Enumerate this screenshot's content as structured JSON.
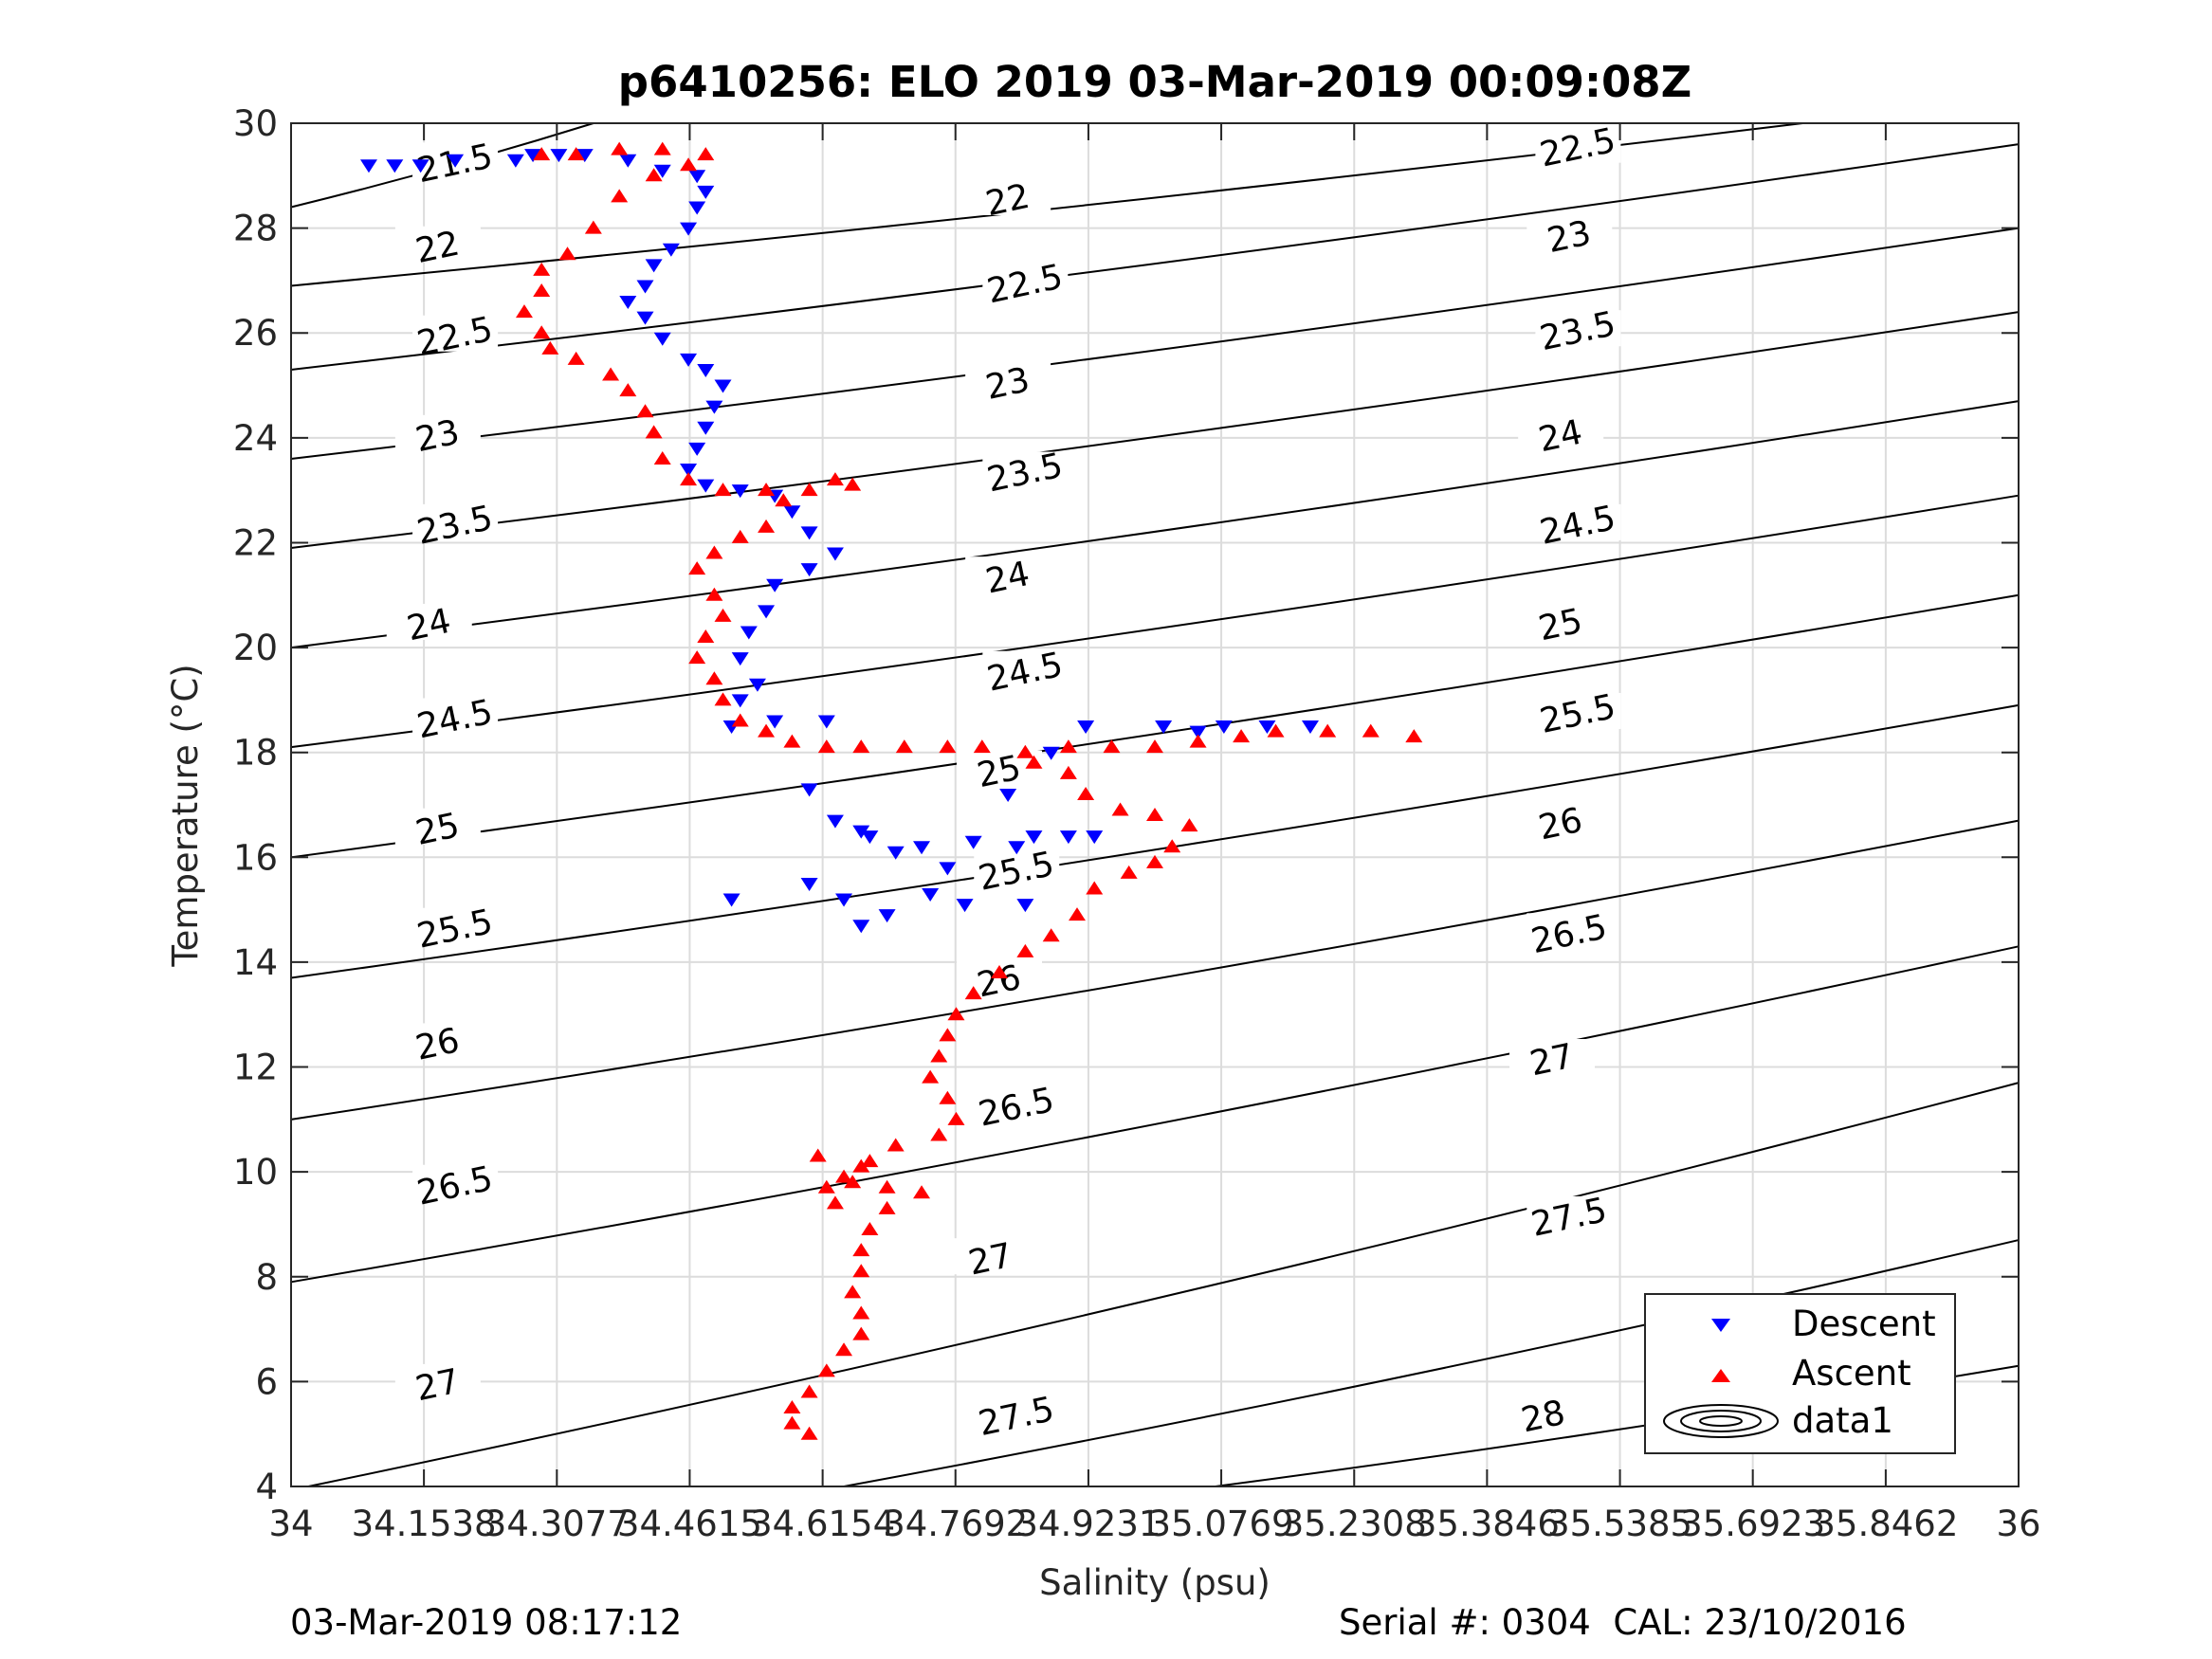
{
  "chart_data": {
    "type": "scatter",
    "title": "p6410256: ELO 2019 03-Mar-2019 00:09:08Z",
    "xlabel": "Salinity (psu)",
    "ylabel": "Temperature (°C)",
    "xlim": [
      34,
      36
    ],
    "ylim": [
      4,
      30
    ],
    "grid": true,
    "legend_position": "bottom-right",
    "xticks": [
      34,
      34.1538,
      34.3077,
      34.4615,
      34.6154,
      34.7692,
      34.9231,
      35.0769,
      35.2308,
      35.3846,
      35.5385,
      35.6923,
      35.8462,
      36
    ],
    "xtick_labels": [
      "34",
      "34.1538",
      "34.3077",
      "34.4615",
      "34.6154",
      "34.7692",
      "34.9231",
      "35.0769",
      "35.2308",
      "35.3846",
      "35.5385",
      "35.6923",
      "35.8462",
      "36"
    ],
    "yticks": [
      4,
      6,
      8,
      10,
      12,
      14,
      16,
      18,
      20,
      22,
      24,
      26,
      28,
      30
    ],
    "ytick_labels": [
      "4",
      "6",
      "8",
      "10",
      "12",
      "14",
      "16",
      "18",
      "20",
      "22",
      "24",
      "26",
      "28",
      "30"
    ],
    "density_contours": {
      "levels": [
        "21.5",
        "22",
        "22.5",
        "23",
        "23.5",
        "24",
        "24.5",
        "25",
        "25.5",
        "26",
        "26.5",
        "27",
        "27.5",
        "28"
      ],
      "label_positions": [
        {
          "label": "21.5",
          "x": 34.19,
          "y": 29.2
        },
        {
          "label": "22",
          "x": 34.17,
          "y": 27.6
        },
        {
          "label": "22.5",
          "x": 34.19,
          "y": 25.9
        },
        {
          "label": "23",
          "x": 34.17,
          "y": 24.0
        },
        {
          "label": "23.5",
          "x": 34.19,
          "y": 22.3
        },
        {
          "label": "24",
          "x": 34.16,
          "y": 20.4
        },
        {
          "label": "24.5",
          "x": 34.19,
          "y": 18.6
        },
        {
          "label": "25",
          "x": 34.17,
          "y": 16.5
        },
        {
          "label": "25.5",
          "x": 34.19,
          "y": 14.6
        },
        {
          "label": "26",
          "x": 34.17,
          "y": 12.4
        },
        {
          "label": "26.5",
          "x": 34.19,
          "y": 9.7
        },
        {
          "label": "27",
          "x": 34.17,
          "y": 5.9
        },
        {
          "label": "22",
          "x": 34.83,
          "y": 28.5
        },
        {
          "label": "22.5",
          "x": 34.85,
          "y": 26.9
        },
        {
          "label": "23",
          "x": 34.83,
          "y": 25.0
        },
        {
          "label": "23.5",
          "x": 34.85,
          "y": 23.3
        },
        {
          "label": "24",
          "x": 34.83,
          "y": 21.3
        },
        {
          "label": "24.5",
          "x": 34.85,
          "y": 19.5
        },
        {
          "label": "25",
          "x": 34.82,
          "y": 17.6
        },
        {
          "label": "25.5",
          "x": 34.84,
          "y": 15.7
        },
        {
          "label": "26",
          "x": 34.82,
          "y": 13.6
        },
        {
          "label": "26.5",
          "x": 34.84,
          "y": 11.2
        },
        {
          "label": "27",
          "x": 34.81,
          "y": 8.3
        },
        {
          "label": "27.5",
          "x": 34.84,
          "y": 5.3
        },
        {
          "label": "22.5",
          "x": 35.49,
          "y": 29.5
        },
        {
          "label": "23",
          "x": 35.48,
          "y": 27.8
        },
        {
          "label": "23.5",
          "x": 35.49,
          "y": 26.0
        },
        {
          "label": "24",
          "x": 35.47,
          "y": 24.0
        },
        {
          "label": "24.5",
          "x": 35.49,
          "y": 22.3
        },
        {
          "label": "25",
          "x": 35.47,
          "y": 20.4
        },
        {
          "label": "25.5",
          "x": 35.49,
          "y": 18.7
        },
        {
          "label": "26",
          "x": 35.47,
          "y": 16.6
        },
        {
          "label": "26.5",
          "x": 35.48,
          "y": 14.5
        },
        {
          "label": "27",
          "x": 35.46,
          "y": 12.1
        },
        {
          "label": "27.5",
          "x": 35.48,
          "y": 9.1
        },
        {
          "label": "28",
          "x": 35.45,
          "y": 5.3
        }
      ]
    },
    "series": [
      {
        "name": "Descent",
        "marker": "triangle-down",
        "color": "#0000ff",
        "points": [
          [
            34.09,
            29.2
          ],
          [
            34.12,
            29.2
          ],
          [
            34.15,
            29.2
          ],
          [
            34.19,
            29.3
          ],
          [
            34.26,
            29.3
          ],
          [
            34.28,
            29.4
          ],
          [
            34.31,
            29.4
          ],
          [
            34.34,
            29.4
          ],
          [
            34.39,
            29.3
          ],
          [
            34.43,
            29.1
          ],
          [
            34.47,
            29.0
          ],
          [
            34.48,
            28.7
          ],
          [
            34.47,
            28.4
          ],
          [
            34.46,
            28.0
          ],
          [
            34.44,
            27.6
          ],
          [
            34.42,
            27.3
          ],
          [
            34.41,
            26.9
          ],
          [
            34.39,
            26.6
          ],
          [
            34.41,
            26.3
          ],
          [
            34.43,
            25.9
          ],
          [
            34.46,
            25.5
          ],
          [
            34.48,
            25.3
          ],
          [
            34.5,
            25.0
          ],
          [
            34.49,
            24.6
          ],
          [
            34.48,
            24.2
          ],
          [
            34.47,
            23.8
          ],
          [
            34.46,
            23.4
          ],
          [
            34.48,
            23.1
          ],
          [
            34.52,
            23.0
          ],
          [
            34.56,
            22.9
          ],
          [
            34.58,
            22.6
          ],
          [
            34.6,
            22.2
          ],
          [
            34.63,
            21.8
          ],
          [
            34.6,
            21.5
          ],
          [
            34.56,
            21.2
          ],
          [
            34.55,
            20.7
          ],
          [
            34.53,
            20.3
          ],
          [
            34.52,
            19.8
          ],
          [
            34.54,
            19.3
          ],
          [
            34.52,
            19.0
          ],
          [
            34.51,
            18.5
          ],
          [
            34.56,
            18.6
          ],
          [
            34.62,
            18.6
          ],
          [
            34.6,
            17.3
          ],
          [
            34.63,
            16.7
          ],
          [
            34.66,
            16.5
          ],
          [
            34.67,
            16.4
          ],
          [
            34.7,
            16.1
          ],
          [
            34.73,
            16.2
          ],
          [
            34.76,
            15.8
          ],
          [
            34.79,
            16.3
          ],
          [
            34.84,
            16.2
          ],
          [
            34.86,
            16.4
          ],
          [
            34.9,
            16.4
          ],
          [
            34.93,
            16.4
          ],
          [
            34.83,
            17.2
          ],
          [
            34.88,
            18.0
          ],
          [
            34.92,
            18.5
          ],
          [
            35.01,
            18.5
          ],
          [
            35.05,
            18.4
          ],
          [
            35.08,
            18.5
          ],
          [
            35.13,
            18.5
          ],
          [
            35.18,
            18.5
          ],
          [
            34.64,
            15.2
          ],
          [
            34.66,
            14.7
          ],
          [
            34.69,
            14.9
          ],
          [
            34.74,
            15.3
          ],
          [
            34.78,
            15.1
          ],
          [
            34.85,
            15.1
          ],
          [
            34.6,
            15.5
          ],
          [
            34.51,
            15.2
          ]
        ]
      },
      {
        "name": "Ascent",
        "marker": "triangle-up",
        "color": "#ff0000",
        "points": [
          [
            34.29,
            29.4
          ],
          [
            34.33,
            29.4
          ],
          [
            34.38,
            29.5
          ],
          [
            34.43,
            29.5
          ],
          [
            34.48,
            29.4
          ],
          [
            34.46,
            29.2
          ],
          [
            34.42,
            29.0
          ],
          [
            34.38,
            28.6
          ],
          [
            34.35,
            28.0
          ],
          [
            34.32,
            27.5
          ],
          [
            34.29,
            27.2
          ],
          [
            34.29,
            26.8
          ],
          [
            34.27,
            26.4
          ],
          [
            34.29,
            26.0
          ],
          [
            34.3,
            25.7
          ],
          [
            34.33,
            25.5
          ],
          [
            34.37,
            25.2
          ],
          [
            34.39,
            24.9
          ],
          [
            34.41,
            24.5
          ],
          [
            34.42,
            24.1
          ],
          [
            34.43,
            23.6
          ],
          [
            34.46,
            23.2
          ],
          [
            34.5,
            23.0
          ],
          [
            34.55,
            23.0
          ],
          [
            34.6,
            23.0
          ],
          [
            34.65,
            23.1
          ],
          [
            34.63,
            23.2
          ],
          [
            34.57,
            22.8
          ],
          [
            34.55,
            22.3
          ],
          [
            34.52,
            22.1
          ],
          [
            34.49,
            21.8
          ],
          [
            34.47,
            21.5
          ],
          [
            34.49,
            21.0
          ],
          [
            34.5,
            20.6
          ],
          [
            34.48,
            20.2
          ],
          [
            34.47,
            19.8
          ],
          [
            34.49,
            19.4
          ],
          [
            34.5,
            19.0
          ],
          [
            34.52,
            18.6
          ],
          [
            34.55,
            18.4
          ],
          [
            34.58,
            18.2
          ],
          [
            34.62,
            18.1
          ],
          [
            34.66,
            18.1
          ],
          [
            34.71,
            18.1
          ],
          [
            34.76,
            18.1
          ],
          [
            34.8,
            18.1
          ],
          [
            34.85,
            18.0
          ],
          [
            34.9,
            18.1
          ],
          [
            34.95,
            18.1
          ],
          [
            35.0,
            18.1
          ],
          [
            35.05,
            18.2
          ],
          [
            35.1,
            18.3
          ],
          [
            35.14,
            18.4
          ],
          [
            35.2,
            18.4
          ],
          [
            35.25,
            18.4
          ],
          [
            35.3,
            18.3
          ],
          [
            34.86,
            17.8
          ],
          [
            34.9,
            17.6
          ],
          [
            34.92,
            17.2
          ],
          [
            34.96,
            16.9
          ],
          [
            35.0,
            16.8
          ],
          [
            35.04,
            16.6
          ],
          [
            35.02,
            16.2
          ],
          [
            35.0,
            15.9
          ],
          [
            34.97,
            15.7
          ],
          [
            34.93,
            15.4
          ],
          [
            34.91,
            14.9
          ],
          [
            34.88,
            14.5
          ],
          [
            34.85,
            14.2
          ],
          [
            34.82,
            13.8
          ],
          [
            34.79,
            13.4
          ],
          [
            34.77,
            13.0
          ],
          [
            34.76,
            12.6
          ],
          [
            34.75,
            12.2
          ],
          [
            34.74,
            11.8
          ],
          [
            34.76,
            11.4
          ],
          [
            34.77,
            11.0
          ],
          [
            34.75,
            10.7
          ],
          [
            34.7,
            10.5
          ],
          [
            34.67,
            10.2
          ],
          [
            34.64,
            9.9
          ],
          [
            34.62,
            9.7
          ],
          [
            34.65,
            9.8
          ],
          [
            34.69,
            9.7
          ],
          [
            34.73,
            9.6
          ],
          [
            34.69,
            9.3
          ],
          [
            34.67,
            8.9
          ],
          [
            34.66,
            8.5
          ],
          [
            34.66,
            8.1
          ],
          [
            34.65,
            7.7
          ],
          [
            34.66,
            7.3
          ],
          [
            34.66,
            6.9
          ],
          [
            34.64,
            6.6
          ],
          [
            34.62,
            6.2
          ],
          [
            34.6,
            5.8
          ],
          [
            34.58,
            5.5
          ],
          [
            34.58,
            5.2
          ],
          [
            34.6,
            5.0
          ],
          [
            34.61,
            10.3
          ],
          [
            34.66,
            10.1
          ],
          [
            34.63,
            9.4
          ]
        ]
      },
      {
        "name": "data1",
        "marker": "contour"
      }
    ]
  },
  "footer": {
    "timestamp": "03-Mar-2019 08:17:12",
    "serial": "Serial #: 0304  CAL: 23/10/2016"
  },
  "colors": {
    "descent": "#0000ff",
    "ascent": "#ff0000",
    "grid": "#dcdcdc",
    "axis": "#262626"
  }
}
